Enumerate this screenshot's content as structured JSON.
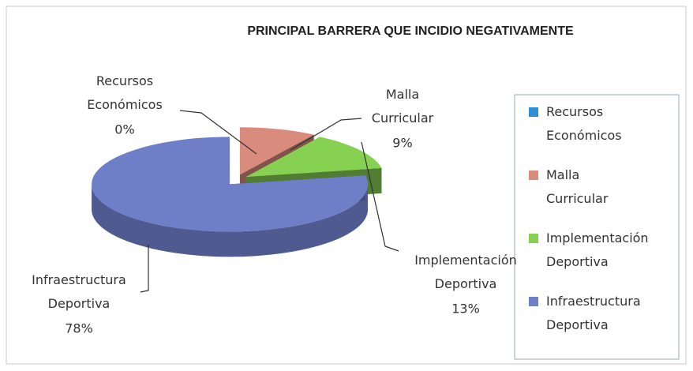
{
  "chart_data": {
    "type": "pie",
    "title": "PRINCIPAL BARRERA  QUE INCIDIO NEGATIVAMENTE",
    "categories": [
      "Recursos Económicos",
      "Malla Curricular",
      "Implementación Deportiva",
      "Infraestructura Deportiva"
    ],
    "values": [
      0,
      9,
      13,
      78
    ],
    "value_labels": [
      "0%",
      "9%",
      "13%",
      "78%"
    ],
    "colors": [
      "#2f8fd6",
      "#d98b7d",
      "#86d052",
      "#6e7fc8"
    ],
    "legend": "right"
  }
}
